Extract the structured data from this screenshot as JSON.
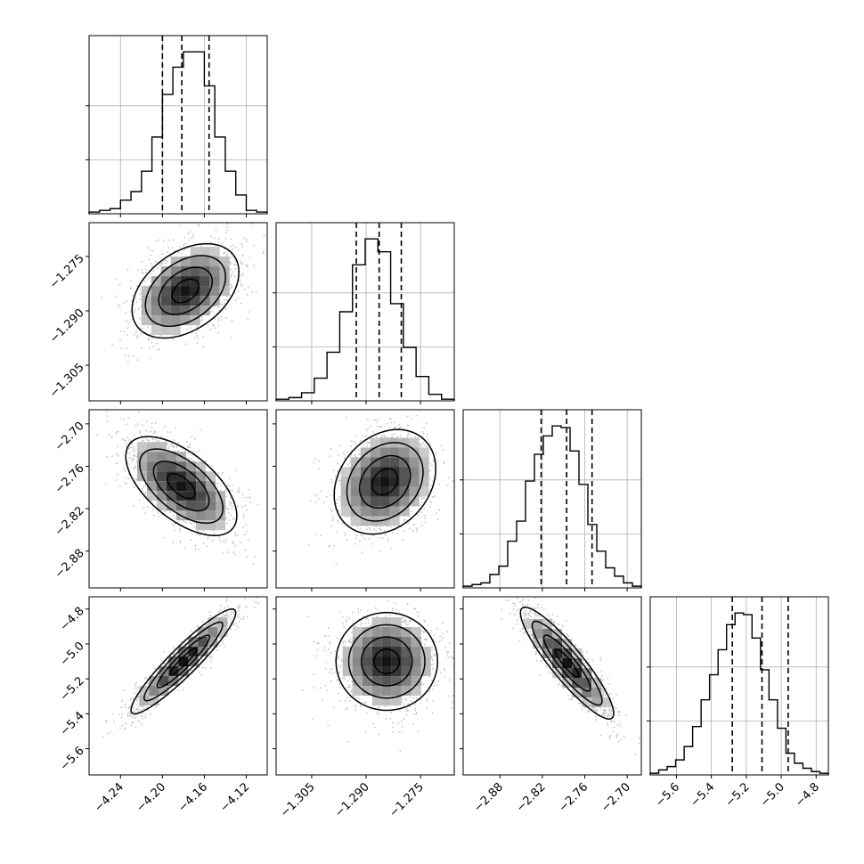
{
  "chart_data": {
    "type": "corner",
    "parameters": [
      {
        "range": [
          -4.27,
          -4.1
        ],
        "ticks": [
          -4.24,
          -4.2,
          -4.16,
          -4.12
        ],
        "tick_labels": [
          "−4.24",
          "−4.20",
          "−4.16",
          "−4.12"
        ],
        "quantiles": [
          -4.2,
          -4.1815,
          -4.1555
        ],
        "histogram": [
          1,
          2,
          3,
          8,
          13,
          25,
          45,
          70,
          86,
          95,
          95,
          75,
          45,
          25,
          11,
          2,
          1
        ]
      },
      {
        "range": [
          -1.3148,
          -1.2657
        ],
        "ticks": [
          -1.305,
          -1.29,
          -1.275
        ],
        "tick_labels": [
          "−1.305",
          "−1.290",
          "−1.275"
        ],
        "quantiles": [
          -1.2927,
          -1.2864,
          -1.2803
        ],
        "histogram": [
          1,
          2,
          5,
          14,
          30,
          55,
          84,
          100,
          92,
          60,
          33,
          15,
          4,
          1
        ]
      },
      {
        "range": [
          -2.932,
          -2.68
        ],
        "ticks": [
          -2.88,
          -2.82,
          -2.76,
          -2.7
        ],
        "tick_labels": [
          "−2.88",
          "−2.82",
          "−2.76",
          "−2.70"
        ],
        "quantiles": [
          -2.8217,
          -2.7857,
          -2.7497
        ],
        "histogram": [
          1,
          2,
          3,
          8,
          13,
          28,
          40,
          64,
          80,
          91,
          97,
          96,
          82,
          62,
          38,
          22,
          12,
          7,
          3,
          1
        ]
      },
      {
        "range": [
          -5.75,
          -4.73
        ],
        "ticks": [
          -5.6,
          -5.4,
          -5.2,
          -5.0,
          -4.8
        ],
        "tick_labels": [
          "−5.6",
          "−5.4",
          "−5.2",
          "−5.0",
          "−4.8"
        ],
        "quantiles": [
          -5.28,
          -5.11,
          -4.96
        ],
        "histogram": [
          1,
          3,
          5,
          9,
          17,
          29,
          45,
          60,
          75,
          90,
          97,
          96,
          82,
          63,
          45,
          28,
          13,
          7,
          4,
          2,
          1
        ]
      }
    ],
    "pairs": [
      {
        "x": 0,
        "y": 1,
        "mean": [
          -4.178,
          -1.2845
        ],
        "sd": [
          0.0255,
          0.0065
        ],
        "corr": 0.4
      },
      {
        "x": 0,
        "y": 2,
        "mean": [
          -4.182,
          -2.788
        ],
        "sd": [
          0.0265,
          0.035
        ],
        "corr": -0.6
      },
      {
        "x": 1,
        "y": 2,
        "mean": [
          -1.2848,
          -2.782
        ],
        "sd": [
          0.007,
          0.037
        ],
        "corr": 0.25
      },
      {
        "x": 0,
        "y": 3,
        "mean": [
          -4.18,
          -5.1
        ],
        "sd": [
          0.025,
          0.15
        ],
        "corr": 0.93
      },
      {
        "x": 1,
        "y": 3,
        "mean": [
          -1.2843,
          -5.1
        ],
        "sd": [
          0.007,
          0.14
        ],
        "corr": 0.0
      },
      {
        "x": 2,
        "y": 3,
        "mean": [
          -2.785,
          -5.11
        ],
        "sd": [
          0.033,
          0.16
        ],
        "corr": -0.9
      }
    ],
    "contour_levels_sigma": [
      0.5,
      1.0,
      1.5,
      2.0
    ],
    "grid": true
  }
}
